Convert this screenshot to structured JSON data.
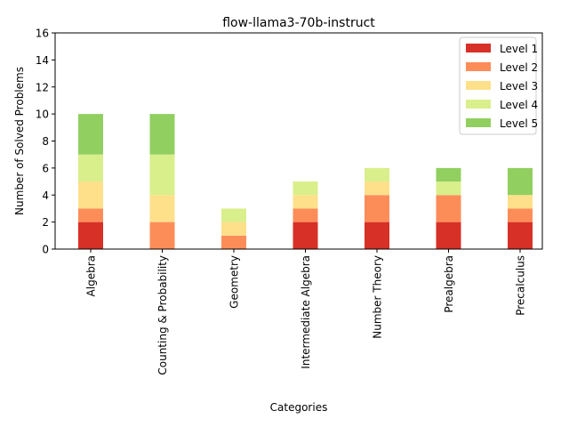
{
  "chart_data": {
    "type": "bar",
    "stacked": true,
    "title": "flow-llama3-70b-instruct",
    "xlabel": "Categories",
    "ylabel": "Number of Solved Problems",
    "ylim": [
      0,
      16
    ],
    "yticks": [
      0,
      2,
      4,
      6,
      8,
      10,
      12,
      14,
      16
    ],
    "categories": [
      "Algebra",
      "Counting & Probability",
      "Geometry",
      "Intermediate Algebra",
      "Number Theory",
      "Prealgebra",
      "Precalculus"
    ],
    "series": [
      {
        "name": "Level 1",
        "color": "#d73027",
        "values": [
          2,
          0,
          0,
          2,
          2,
          2,
          2
        ]
      },
      {
        "name": "Level 2",
        "color": "#fc8d59",
        "values": [
          1,
          2,
          1,
          1,
          2,
          2,
          1
        ]
      },
      {
        "name": "Level 3",
        "color": "#fee08b",
        "values": [
          2,
          2,
          1,
          1,
          1,
          0,
          1
        ]
      },
      {
        "name": "Level 4",
        "color": "#d9ef8b",
        "values": [
          2,
          3,
          1,
          1,
          1,
          1,
          0
        ]
      },
      {
        "name": "Level 5",
        "color": "#91cf60",
        "values": [
          3,
          3,
          0,
          0,
          0,
          1,
          2
        ]
      }
    ],
    "legend_position": "top-right",
    "grid": false
  }
}
